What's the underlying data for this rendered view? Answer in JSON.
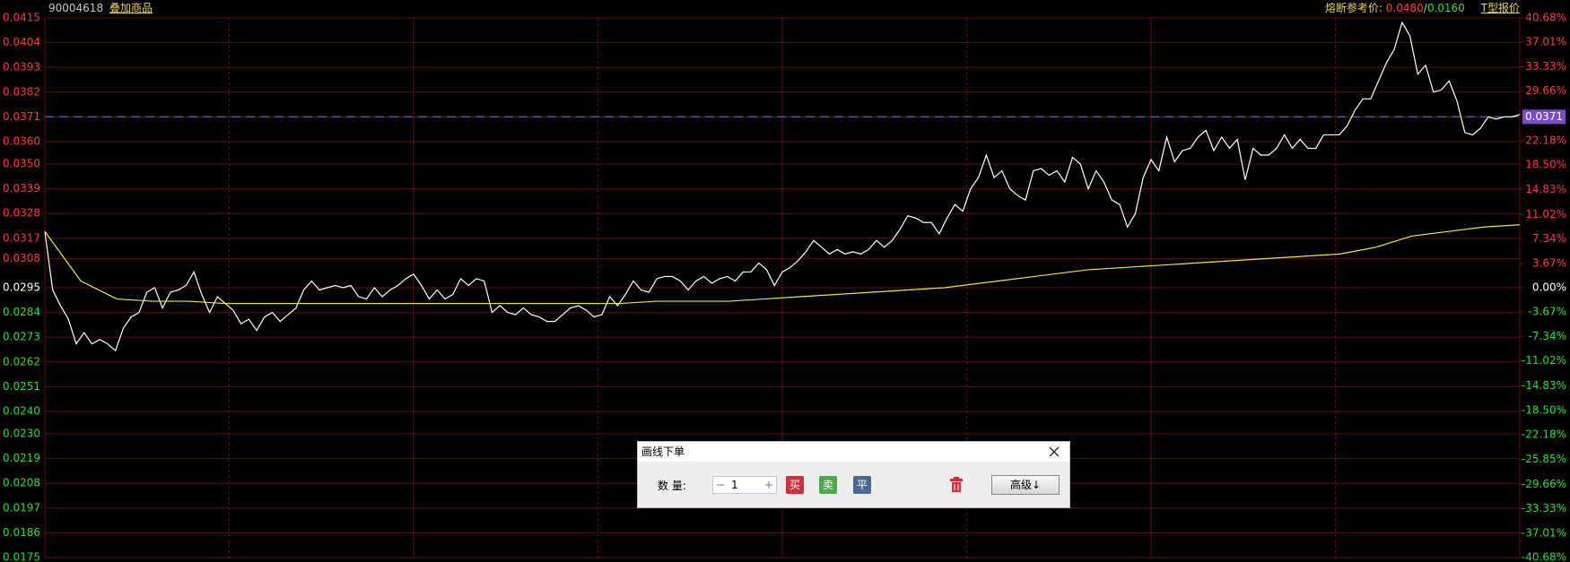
{
  "header": {
    "code": "90004618",
    "overlay": "叠加商品",
    "limit_label": "熔断参考价:",
    "limit_up": "0.0480",
    "separator": "/",
    "limit_down": "0.0160",
    "t_quote": "T型报价"
  },
  "chart_data": {
    "type": "line",
    "series": [
      {
        "color": "#ffffff",
        "values": [
          0.032,
          0.0294,
          0.0287,
          0.0281,
          0.027,
          0.0275,
          0.027,
          0.0272,
          0.027,
          0.0267,
          0.0277,
          0.0282,
          0.0284,
          0.0293,
          0.0295,
          0.0286,
          0.0293,
          0.0294,
          0.0296,
          0.0302,
          0.0292,
          0.0284,
          0.0291,
          0.0288,
          0.0285,
          0.0279,
          0.0281,
          0.0276,
          0.0282,
          0.0284,
          0.028,
          0.0283,
          0.0286,
          0.0294,
          0.0298,
          0.0294,
          0.0295,
          0.0296,
          0.0295,
          0.0296,
          0.0291,
          0.029,
          0.0295,
          0.0291,
          0.0294,
          0.0296,
          0.0299,
          0.0301,
          0.0296,
          0.029,
          0.0294,
          0.029,
          0.0292,
          0.0299,
          0.0296,
          0.0299,
          0.0298,
          0.0284,
          0.0287,
          0.0284,
          0.0283,
          0.0286,
          0.0283,
          0.0282,
          0.028,
          0.028,
          0.0283,
          0.0286,
          0.0287,
          0.0285,
          0.0282,
          0.0283,
          0.0291,
          0.0287,
          0.0292,
          0.0298,
          0.0294,
          0.0293,
          0.0299,
          0.03,
          0.03,
          0.0298,
          0.0294,
          0.0298,
          0.03,
          0.0297,
          0.0299,
          0.03,
          0.0298,
          0.0302,
          0.0302,
          0.0306,
          0.0303,
          0.0296,
          0.0302,
          0.0304,
          0.0307,
          0.0311,
          0.0316,
          0.0313,
          0.031,
          0.0312,
          0.031,
          0.0311,
          0.031,
          0.0312,
          0.0316,
          0.0313,
          0.0316,
          0.0321,
          0.0327,
          0.0326,
          0.0324,
          0.0324,
          0.0319,
          0.0326,
          0.0332,
          0.0329,
          0.0339,
          0.0344,
          0.0354,
          0.0344,
          0.0347,
          0.0339,
          0.0336,
          0.0334,
          0.0347,
          0.0348,
          0.0345,
          0.0347,
          0.0342,
          0.0353,
          0.035,
          0.0339,
          0.0347,
          0.0342,
          0.0334,
          0.0332,
          0.0322,
          0.0328,
          0.0344,
          0.0352,
          0.0347,
          0.0362,
          0.0351,
          0.0356,
          0.0357,
          0.0362,
          0.0365,
          0.0356,
          0.0362,
          0.0357,
          0.0361,
          0.0343,
          0.0357,
          0.0354,
          0.0354,
          0.0357,
          0.0363,
          0.0357,
          0.0361,
          0.0357,
          0.0357,
          0.0363,
          0.0363,
          0.0363,
          0.0367,
          0.0374,
          0.0379,
          0.0379,
          0.0387,
          0.0395,
          0.0401,
          0.0413,
          0.0407,
          0.039,
          0.0394,
          0.0382,
          0.0383,
          0.0387,
          0.0378,
          0.0364,
          0.0363,
          0.0366,
          0.0371,
          0.037,
          0.0371,
          0.0371,
          0.0372
        ]
      },
      {
        "color": "#e6e64c",
        "values": [
          0.032,
          0.0298,
          0.029,
          0.0289,
          0.0289,
          0.0288,
          0.0288,
          0.0288,
          0.0288,
          0.0288,
          0.0288,
          0.0288,
          0.0288,
          0.0288,
          0.0288,
          0.0288,
          0.0288,
          0.0289,
          0.0289,
          0.0289,
          0.029,
          0.0291,
          0.0292,
          0.0293,
          0.0294,
          0.0295,
          0.0297,
          0.0299,
          0.0301,
          0.0303,
          0.0304,
          0.0305,
          0.0306,
          0.0307,
          0.0308,
          0.0309,
          0.031,
          0.0313,
          0.0318,
          0.032,
          0.0322,
          0.0323
        ]
      }
    ],
    "ylim": [
      0.0175,
      0.0415
    ],
    "yticks": [
      0.0415,
      0.0404,
      0.0393,
      0.0382,
      0.0371,
      {
        "value": 0.036,
        "label": "0.0360"
      },
      {
        "value": 0.035,
        "label": "0.0350"
      },
      0.0339,
      0.0328,
      0.0317,
      0.0308,
      0.0295,
      0.0284,
      0.0273,
      0.0262,
      0.0251,
      {
        "value": 0.024,
        "label": "0.0240"
      },
      {
        "value": 0.023,
        "label": "0.0230"
      },
      0.0219,
      0.0208,
      0.0197,
      0.0186,
      0.0175
    ],
    "y2lim": [
      -40.68,
      40.68
    ],
    "y2ticks": [
      {
        "value": 40.68,
        "label": "40.68%"
      },
      {
        "value": 37.01,
        "label": "37.01%"
      },
      {
        "value": 33.33,
        "label": "33.33%"
      },
      {
        "value": 29.66,
        "label": "29.66%"
      },
      {
        "value": 22.18,
        "label": "22.18%"
      },
      {
        "value": 18.5,
        "label": "18.50%"
      },
      {
        "value": 14.83,
        "label": "14.83%"
      },
      {
        "value": 11.02,
        "label": "11.02%"
      },
      {
        "value": 7.34,
        "label": "7.34%"
      },
      {
        "value": 3.67,
        "label": "3.67%"
      },
      {
        "value": 0,
        "label": "0.00%"
      },
      {
        "value": -3.67,
        "label": "-3.67%"
      },
      {
        "value": -7.34,
        "label": "-7.34%"
      },
      {
        "value": -11.02,
        "label": "-11.02%"
      },
      {
        "value": -14.83,
        "label": "-14.83%"
      },
      {
        "value": -18.5,
        "label": "-18.50%"
      },
      {
        "value": -22.18,
        "label": "-22.18%"
      },
      {
        "value": -25.85,
        "label": "-25.85%"
      },
      {
        "value": -29.66,
        "label": "-29.66%"
      },
      {
        "value": -33.33,
        "label": "-33.33%"
      },
      {
        "value": -37.01,
        "label": "-37.01%"
      },
      {
        "value": -40.68,
        "label": "-40.68%"
      }
    ],
    "reference_line": 0.0371,
    "reference_color": "#7a4cc8",
    "grid": true,
    "grid_color": "#5e1010"
  },
  "dialog": {
    "title": "画线下单",
    "quantity_label": "数 量:",
    "quantity": 1,
    "buy": "买",
    "sell": "卖",
    "close_position": "平",
    "advanced": "高级↓"
  }
}
